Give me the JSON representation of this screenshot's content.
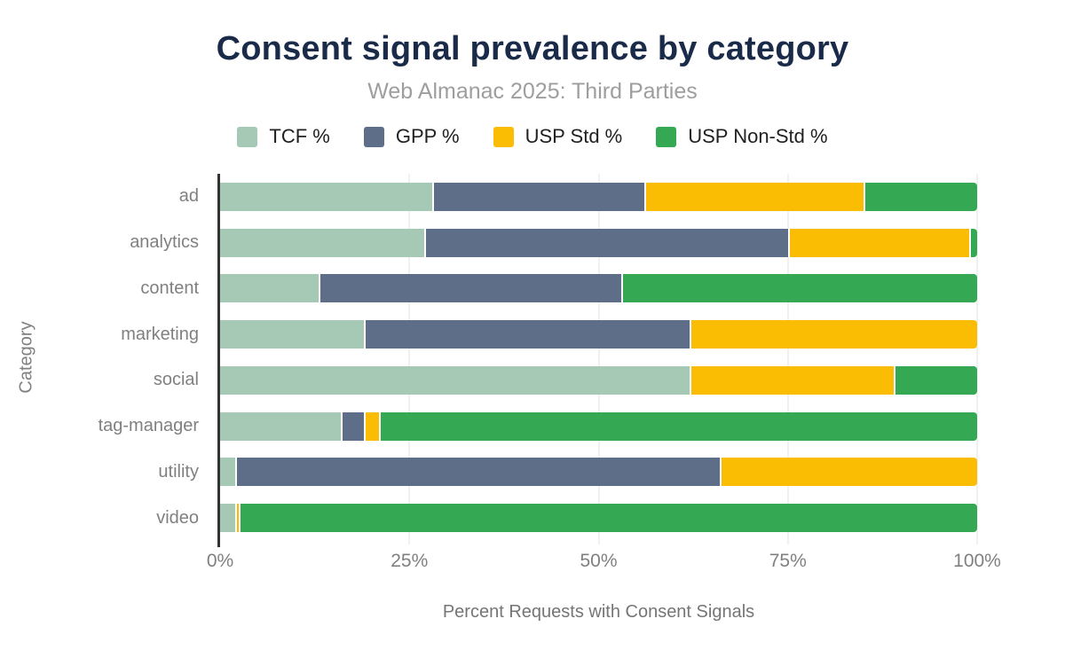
{
  "header": {
    "title": "Consent signal prevalence by category",
    "subtitle": "Web Almanac 2025: Third Parties"
  },
  "axes": {
    "y_title": "Category",
    "x_title": "Percent Requests with Consent Signals",
    "x_ticks": [
      "0%",
      "25%",
      "50%",
      "75%",
      "100%"
    ]
  },
  "colors": {
    "background": "#ffffff",
    "title_text": "#1a2b49",
    "subtitle_text": "#9e9e9e",
    "axis_text": "#808080",
    "legend_text": "#212121",
    "axis_line": "#333333",
    "gridline": "#f0f0f0"
  },
  "chart_data": {
    "type": "bar",
    "orientation": "horizontal-stacked",
    "title": "Consent signal prevalence by category",
    "subtitle": "Web Almanac 2025: Third Parties",
    "xlabel": "Percent Requests with Consent Signals",
    "ylabel": "Category",
    "xlim": [
      0,
      100
    ],
    "x_tick_labels": [
      "0%",
      "25%",
      "50%",
      "75%",
      "100%"
    ],
    "grid": "vertical",
    "legend_position": "top",
    "categories": [
      "ad",
      "analytics",
      "content",
      "marketing",
      "social",
      "tag-manager",
      "utility",
      "video"
    ],
    "series": [
      {
        "name": "TCF %",
        "color": "#a6c9b6",
        "values": [
          28,
          27,
          13,
          19,
          62,
          16,
          2,
          2
        ]
      },
      {
        "name": "GPP %",
        "color": "#5f6e88",
        "values": [
          28,
          48,
          40,
          43,
          0,
          3,
          64,
          0
        ]
      },
      {
        "name": "USP Std %",
        "color": "#fbbc04",
        "values": [
          29,
          24,
          0,
          38,
          27,
          2,
          34,
          0.5
        ]
      },
      {
        "name": "USP Non-Std %",
        "color": "#34a853",
        "values": [
          15,
          1,
          47,
          0,
          11,
          79,
          0,
          97.5
        ]
      }
    ]
  }
}
